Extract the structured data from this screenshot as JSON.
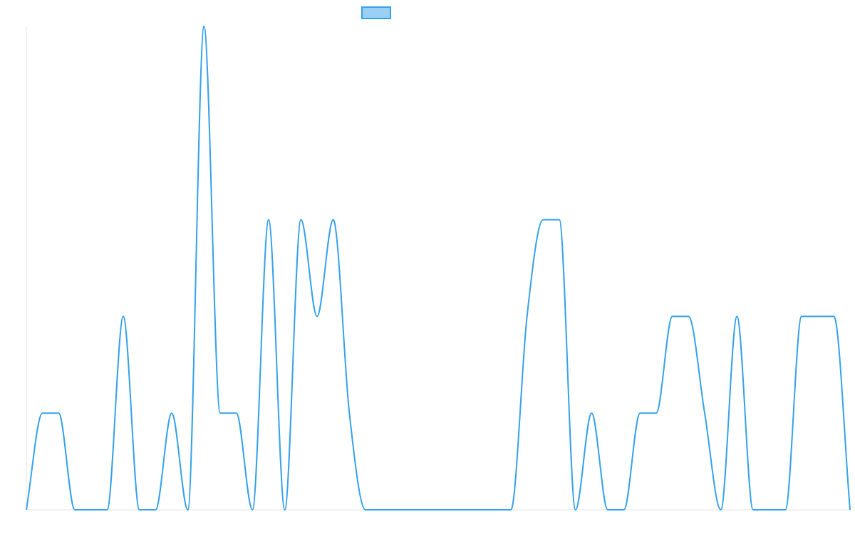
{
  "chart_data": {
    "type": "line",
    "title": "",
    "xlabel": "",
    "ylabel": "",
    "x": [
      0,
      1,
      2,
      3,
      4,
      5,
      6,
      7,
      8,
      9,
      10,
      11,
      12,
      13,
      14,
      15,
      16,
      17,
      18,
      19,
      20,
      21,
      22,
      23,
      24,
      25,
      26,
      27,
      28,
      29,
      30,
      31,
      32,
      33,
      34,
      35,
      36,
      37,
      38,
      39,
      40,
      41,
      42,
      43,
      44,
      45,
      46,
      47,
      48,
      49,
      50,
      51
    ],
    "series": [
      {
        "name": "",
        "values": [
          0,
          1,
          1,
          0,
          0,
          0,
          2,
          0,
          0,
          1,
          0,
          5,
          1,
          1,
          0,
          3,
          0,
          3,
          2,
          3,
          1,
          0,
          0,
          0,
          0,
          0,
          0,
          0,
          0,
          0,
          0,
          2,
          3,
          3,
          0,
          1,
          0,
          0,
          1,
          1,
          2,
          2,
          1,
          0,
          2,
          0,
          0,
          0,
          2,
          2,
          2,
          0
        ]
      }
    ],
    "ylim": [
      0,
      5
    ],
    "grid": false,
    "legend": {
      "position": "top-center",
      "swatch_fill": "#9ad0f5",
      "swatch_border": "#36a2eb"
    },
    "colors": {
      "line": "#36a2eb",
      "axis": "#e6e6e6"
    }
  }
}
